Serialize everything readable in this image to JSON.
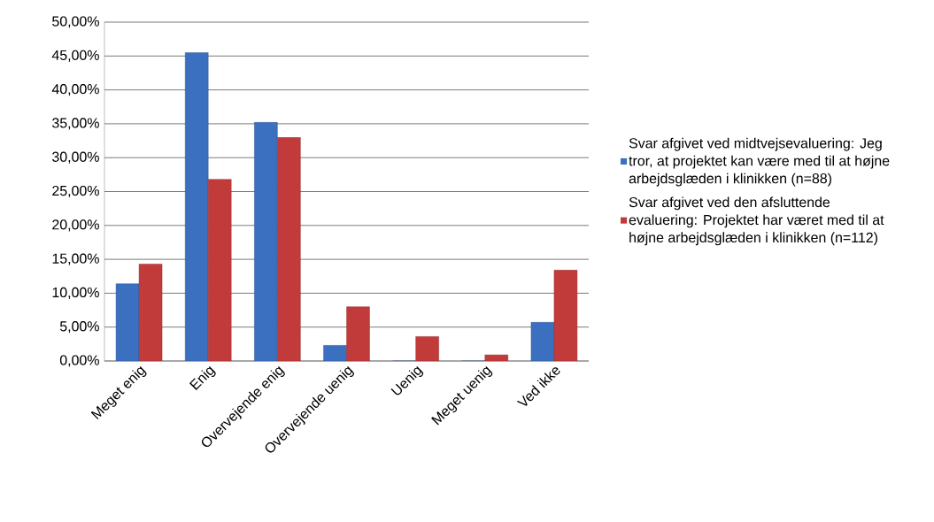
{
  "chart_data": {
    "type": "bar",
    "categories": [
      "Meget enig",
      "Enig",
      "Overvejende enig",
      "Overvejende uenig",
      "Uenig",
      "Meget uenig",
      "Ved ikke"
    ],
    "series": [
      {
        "name": "Svar afgivet ved midtvejsevaluering:  Jeg tror, at projektet kan være med til at højne arbejdsglæden i klinikken (n=88)",
        "color": "#3b70c0",
        "values": [
          11.4,
          45.5,
          35.2,
          2.3,
          0,
          0,
          5.7
        ]
      },
      {
        "name": "Svar afgivet ved den afsluttende evaluering: Projektet har været med til at højne arbejdsglæden i klinikken (n=112)",
        "color": "#c23b3b",
        "values": [
          14.3,
          26.8,
          33.0,
          8.0,
          3.6,
          0.9,
          13.4
        ]
      }
    ],
    "ylim": [
      0,
      50
    ],
    "yticks": [
      {
        "value": 0,
        "label": "0,00%"
      },
      {
        "value": 5,
        "label": "5,00%"
      },
      {
        "value": 10,
        "label": "10,00%"
      },
      {
        "value": 15,
        "label": "15,00%"
      },
      {
        "value": 20,
        "label": "20,00%"
      },
      {
        "value": 25,
        "label": "25,00%"
      },
      {
        "value": 30,
        "label": "30,00%"
      },
      {
        "value": 35,
        "label": "35,00%"
      },
      {
        "value": 40,
        "label": "40,00%"
      },
      {
        "value": 45,
        "label": "45,00%"
      },
      {
        "value": 50,
        "label": "50,00%"
      }
    ],
    "grid": "y",
    "legend": "right"
  }
}
